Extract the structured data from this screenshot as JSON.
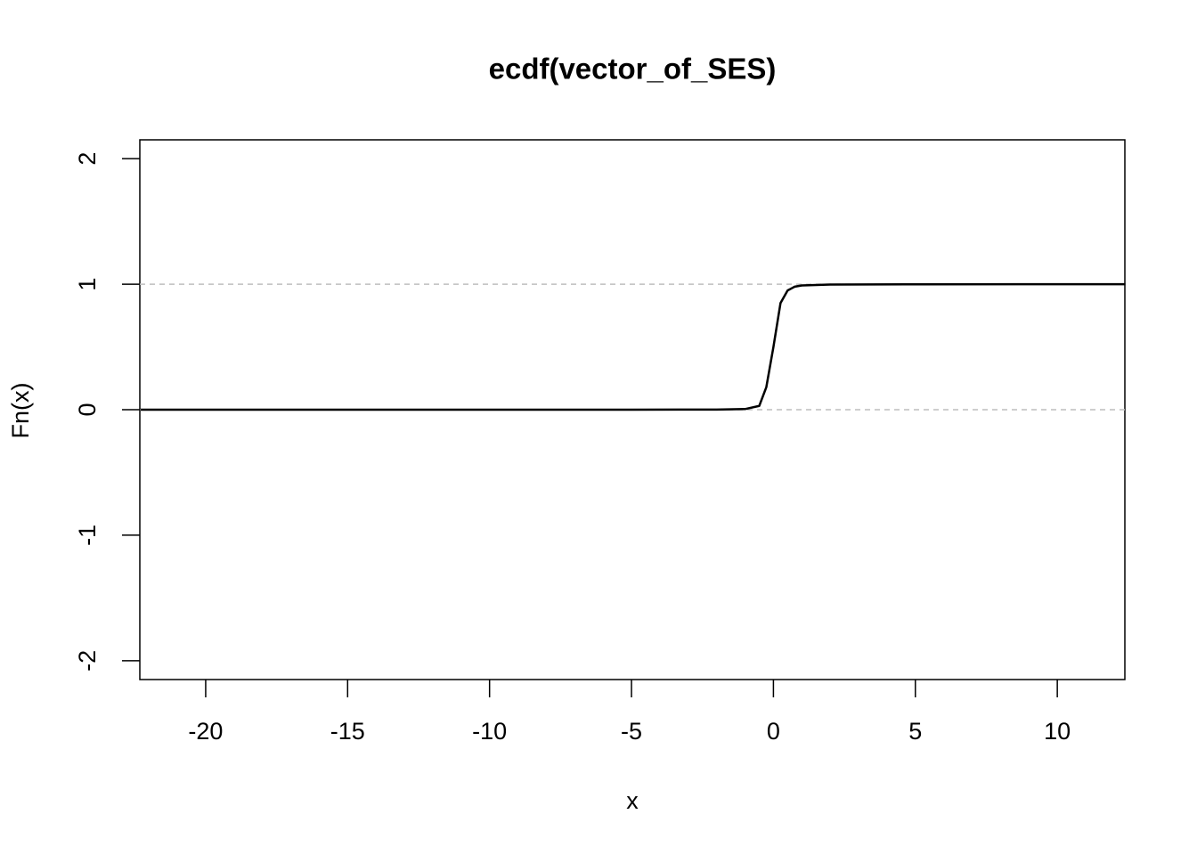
{
  "chart_data": {
    "type": "line",
    "title": "ecdf(vector_of_SES)",
    "x_label": "x",
    "y_label": "Fn(x)",
    "x": [
      -22.3,
      -5,
      -2,
      -1,
      -0.5,
      -0.25,
      0,
      0.25,
      0.5,
      0.75,
      1,
      2,
      5,
      12.4
    ],
    "series": [
      {
        "color": "#000000",
        "values": [
          0,
          0,
          0.001,
          0.005,
          0.03,
          0.18,
          0.5,
          0.85,
          0.95,
          0.98,
          0.99,
          0.997,
          0.999,
          1
        ]
      }
    ],
    "xlim": [
      -22.32,
      12.38
    ],
    "ylim": [
      -2.15,
      2.15
    ],
    "xticks": [
      -20,
      -15,
      -10,
      -5,
      0,
      5,
      10
    ],
    "yticks": [
      -2,
      -1,
      0,
      1,
      2
    ],
    "reference_lines": [
      0,
      1
    ],
    "reference_line_color": "#bebebe"
  }
}
